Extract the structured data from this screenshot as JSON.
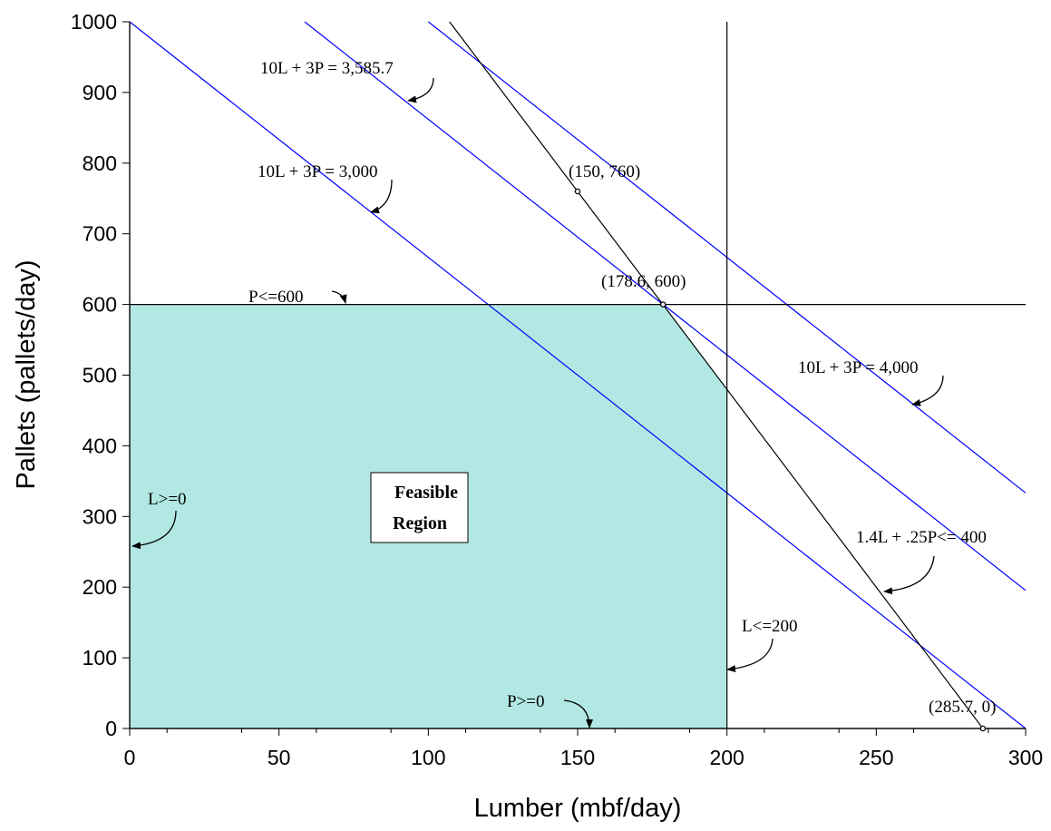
{
  "chart_data": {
    "type": "line",
    "title": "",
    "xlabel": "Lumber (mbf/day)",
    "ylabel": "Pallets (pallets/day)",
    "xlim": [
      0,
      300
    ],
    "ylim": [
      0,
      1000
    ],
    "x_ticks": [
      0,
      50,
      100,
      150,
      200,
      250,
      300
    ],
    "y_ticks": [
      0,
      100,
      200,
      300,
      400,
      500,
      600,
      700,
      800,
      900,
      1000
    ],
    "grid": false,
    "feasible_region": {
      "label_line1": "Feasible",
      "label_line2": "Region",
      "vertices": [
        [
          0,
          0
        ],
        [
          0,
          600
        ],
        [
          178.6,
          600
        ],
        [
          200,
          480
        ],
        [
          200,
          0
        ]
      ],
      "color": "#b2e8e4"
    },
    "constraints": [
      {
        "label": "P<=600",
        "points": [
          [
            0,
            600
          ],
          [
            300,
            600
          ]
        ],
        "color": "#000000"
      },
      {
        "label": "L<=200",
        "points": [
          [
            200,
            0
          ],
          [
            200,
            1000
          ]
        ],
        "color": "#000000"
      },
      {
        "label": "1.4L + .25P<= 400",
        "points": [
          [
            107.1,
            1000
          ],
          [
            285.7,
            0
          ]
        ],
        "color": "#000000"
      },
      {
        "label": "L>=0",
        "points": [
          [
            0,
            0
          ],
          [
            0,
            1000
          ]
        ],
        "color": "#000000"
      },
      {
        "label": "P>=0",
        "points": [
          [
            0,
            0
          ],
          [
            300,
            0
          ]
        ],
        "color": "#000000"
      }
    ],
    "objective_lines": [
      {
        "label": "10L + 3P = 3,000",
        "points": [
          [
            0,
            1000
          ],
          [
            300,
            0
          ]
        ],
        "color": "#0000ff"
      },
      {
        "label": "10L + 3P = 3,585.7",
        "points": [
          [
            58.6,
            1000
          ],
          [
            358.6,
            0
          ]
        ],
        "color": "#0000ff"
      },
      {
        "label": "10L + 3P = 4,000",
        "points": [
          [
            100,
            1000
          ],
          [
            400,
            0
          ]
        ],
        "color": "#0000ff"
      }
    ],
    "points": [
      {
        "label": "(150, 760)",
        "x": 150,
        "y": 760
      },
      {
        "label": "(178.6, 600)",
        "x": 178.6,
        "y": 600
      },
      {
        "label": "(285.7, 0)",
        "x": 285.7,
        "y": 0
      }
    ],
    "colors": {
      "objective": "#0000ff",
      "constraint": "#000000",
      "region": "#b2e8e4"
    }
  }
}
